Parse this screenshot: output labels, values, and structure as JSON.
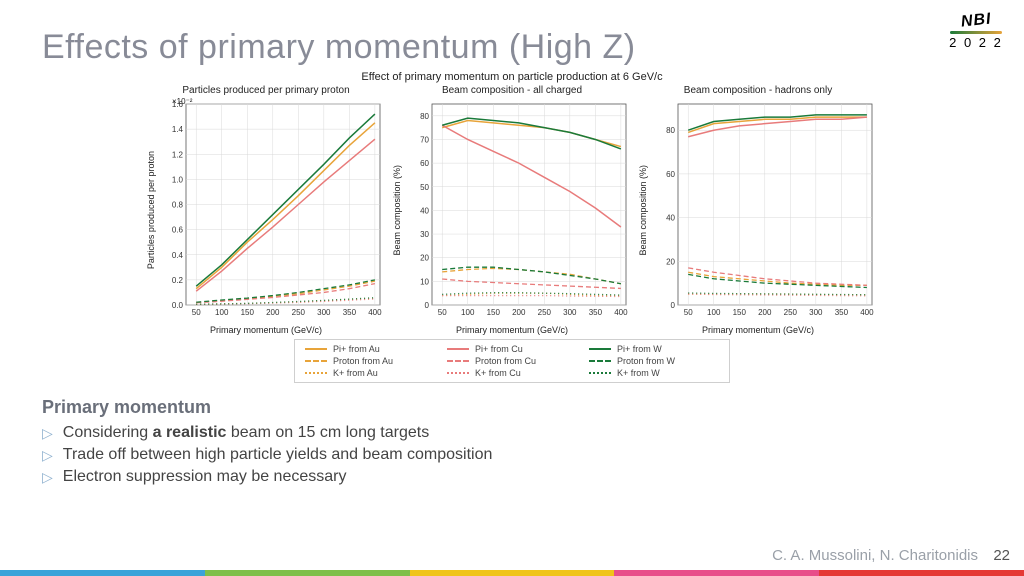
{
  "title": "Effects of primary momentum (High Z)",
  "logo": {
    "text": "NBI",
    "year": "2 0 2 2"
  },
  "figure": {
    "suptitle": "Effect of primary momentum on particle production at 6 GeV/c",
    "x_values": [
      50,
      100,
      150,
      200,
      250,
      300,
      350,
      400
    ],
    "xlabel": "Primary momentum (GeV/c)",
    "xlim": [
      30,
      410
    ],
    "xticks": [
      50,
      100,
      150,
      200,
      250,
      300,
      350,
      400
    ],
    "colors": {
      "Au": "#e8a43a",
      "Cu": "#e87b7b",
      "W": "#1a7a3a",
      "grid": "#d9d9d9",
      "axis": "#555555",
      "tick": "#333333"
    },
    "fontsize": {
      "title": 10,
      "label": 9,
      "tick": 8
    },
    "panels": [
      {
        "title": "Particles produced per primary proton",
        "ylabel": "Particles produced per proton",
        "ylim": [
          0,
          1.6
        ],
        "yticks": [
          0.0,
          0.2,
          0.4,
          0.6,
          0.8,
          1.0,
          1.2,
          1.4,
          1.6
        ],
        "ytick_labels": [
          "0.0",
          "0.2",
          "0.4",
          "0.6",
          "0.8",
          "1.0",
          "1.2",
          "1.4",
          "1.6"
        ],
        "exponent": "×10⁻²",
        "series": {
          "pi_Au": [
            0.13,
            0.3,
            0.5,
            0.68,
            0.87,
            1.07,
            1.27,
            1.45
          ],
          "pi_Cu": [
            0.11,
            0.27,
            0.45,
            0.62,
            0.8,
            0.98,
            1.15,
            1.32
          ],
          "pi_W": [
            0.15,
            0.32,
            0.52,
            0.72,
            0.92,
            1.12,
            1.33,
            1.52
          ],
          "p_Au": [
            0.02,
            0.035,
            0.05,
            0.07,
            0.09,
            0.12,
            0.15,
            0.19
          ],
          "p_Cu": [
            0.018,
            0.03,
            0.045,
            0.06,
            0.08,
            0.1,
            0.13,
            0.17
          ],
          "p_W": [
            0.022,
            0.04,
            0.055,
            0.075,
            0.1,
            0.13,
            0.16,
            0.2
          ],
          "k_Au": [
            0.005,
            0.008,
            0.012,
            0.018,
            0.025,
            0.034,
            0.044,
            0.055
          ],
          "k_Cu": [
            0.004,
            0.007,
            0.01,
            0.015,
            0.021,
            0.029,
            0.038,
            0.048
          ],
          "k_W": [
            0.006,
            0.009,
            0.013,
            0.02,
            0.028,
            0.037,
            0.047,
            0.058
          ]
        }
      },
      {
        "title": "Beam composition - all charged",
        "ylabel": "Beam composition (%)",
        "ylim": [
          0,
          85
        ],
        "yticks": [
          0,
          10,
          20,
          30,
          40,
          50,
          60,
          70,
          80
        ],
        "ytick_labels": [
          "0",
          "10",
          "20",
          "30",
          "40",
          "50",
          "60",
          "70",
          "80"
        ],
        "series": {
          "pi_Au": [
            75,
            78,
            77,
            76,
            75,
            73,
            70,
            67
          ],
          "pi_Cu": [
            76,
            70,
            65,
            60,
            54,
            48,
            41,
            33
          ],
          "pi_W": [
            76,
            79,
            78,
            77,
            75,
            73,
            70,
            66
          ],
          "p_Au": [
            14,
            15,
            15.5,
            15,
            14,
            13,
            11,
            9
          ],
          "p_Cu": [
            11,
            10,
            9.5,
            9,
            8.5,
            8,
            7.5,
            7
          ],
          "p_W": [
            15,
            16,
            16,
            15,
            14,
            12.5,
            11,
            9
          ],
          "k_Au": [
            4,
            4.5,
            5,
            5,
            5,
            4.5,
            4,
            4
          ],
          "k_Cu": [
            4,
            4,
            4,
            4,
            4,
            3.8,
            3.7,
            3.6
          ],
          "k_W": [
            4.5,
            5,
            5.2,
            5.2,
            5,
            4.8,
            4.5,
            4.2
          ]
        }
      },
      {
        "title": "Beam composition - hadrons only",
        "ylabel": "Beam composition (%)",
        "ylim": [
          0,
          92
        ],
        "yticks": [
          0,
          20,
          40,
          60,
          80
        ],
        "ytick_labels": [
          "0",
          "20",
          "40",
          "60",
          "80"
        ],
        "series": {
          "pi_Au": [
            79,
            83,
            84,
            85,
            85,
            86,
            86,
            86
          ],
          "pi_Cu": [
            77,
            80,
            82,
            83,
            84,
            85,
            85,
            86
          ],
          "pi_W": [
            80,
            84,
            85,
            86,
            86,
            87,
            87,
            87
          ],
          "p_Au": [
            15,
            13,
            12,
            11,
            10,
            9.5,
            9,
            9
          ],
          "p_Cu": [
            17,
            15,
            13.5,
            12,
            11,
            10,
            9.5,
            9
          ],
          "p_W": [
            14,
            12,
            11,
            10,
            9.5,
            9,
            8.5,
            8
          ],
          "k_Au": [
            5,
            5,
            5,
            5,
            5,
            4.8,
            4.7,
            4.6
          ],
          "k_Cu": [
            5,
            4.8,
            4.7,
            4.6,
            4.5,
            4.4,
            4.3,
            4.2
          ],
          "k_W": [
            5.5,
            5.3,
            5.2,
            5.1,
            5,
            4.9,
            4.8,
            4.7
          ]
        }
      }
    ],
    "styles": {
      "pi": {
        "dash": "",
        "width": 1.5
      },
      "p": {
        "dash": "5,3",
        "width": 1.3
      },
      "k": {
        "dash": "1,3",
        "width": 1.3
      }
    },
    "legend": [
      {
        "label": "Pi+ from Au",
        "color": "Au",
        "style": "pi"
      },
      {
        "label": "Pi+ from Cu",
        "color": "Cu",
        "style": "pi"
      },
      {
        "label": "Pi+ from W",
        "color": "W",
        "style": "pi"
      },
      {
        "label": "Proton from Au",
        "color": "Au",
        "style": "p"
      },
      {
        "label": "Proton from Cu",
        "color": "Cu",
        "style": "p"
      },
      {
        "label": "Proton from W",
        "color": "W",
        "style": "p"
      },
      {
        "label": "K+ from Au",
        "color": "Au",
        "style": "k"
      },
      {
        "label": "K+ from Cu",
        "color": "Cu",
        "style": "k"
      },
      {
        "label": "K+ from W",
        "color": "W",
        "style": "k"
      }
    ]
  },
  "content": {
    "heading": "Primary momentum",
    "bullets": [
      {
        "pre": "Considering ",
        "bold": "a realistic",
        "post": " beam on 15 cm long targets"
      },
      {
        "pre": "Trade off between high particle yields and beam composition",
        "bold": "",
        "post": ""
      },
      {
        "pre": "Electron suppression may be necessary",
        "bold": "",
        "post": ""
      }
    ]
  },
  "footer": {
    "authors": "C. A. Mussolini, N. Charitonidis",
    "page": "22"
  },
  "stripe_colors": [
    "#3aa3d9",
    "#7fbf4a",
    "#f0c419",
    "#e84e8a",
    "#e53935"
  ]
}
